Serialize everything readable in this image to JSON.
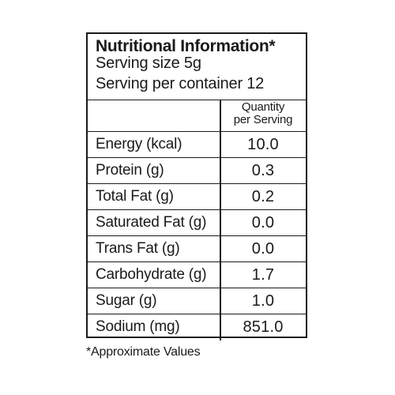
{
  "label": {
    "title": "Nutritional Information*",
    "serving_size": "Serving size 5g",
    "servings_per_container": "Serving per container 12",
    "column_header_line1": "Quantity",
    "column_header_line2": "per Serving",
    "rows": [
      {
        "nutrient": "Energy (kcal)",
        "value": "10.0"
      },
      {
        "nutrient": "Protein (g)",
        "value": "0.3"
      },
      {
        "nutrient": "Total Fat (g)",
        "value": "0.2"
      },
      {
        "nutrient": "Saturated Fat (g)",
        "value": "0.0"
      },
      {
        "nutrient": "Trans Fat (g)",
        "value": "0.0"
      },
      {
        "nutrient": "Carbohydrate (g)",
        "value": "1.7"
      },
      {
        "nutrient": "Sugar (g)",
        "value": "1.0"
      },
      {
        "nutrient": "Sodium (mg)",
        "value": "851.0"
      }
    ],
    "footnote": "*Approximate Values"
  }
}
